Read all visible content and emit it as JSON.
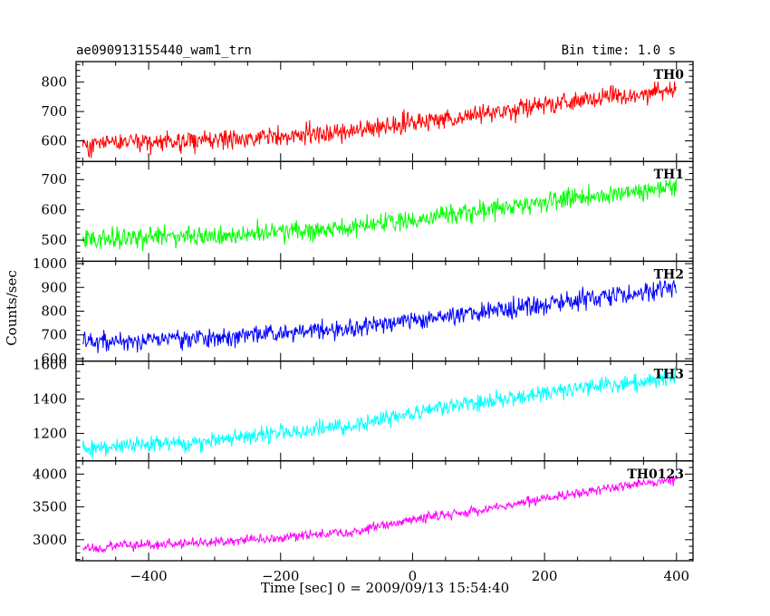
{
  "header": {
    "title": "ae090913155440_wam1_trn",
    "bin_time": "Bin time: 1.0 s"
  },
  "chart_data": {
    "type": "line",
    "title": "ae090913155440_wam1_trn",
    "xlabel": "Time [sec] 0 = 2009/09/13 15:54:40",
    "ylabel": "Counts/sec",
    "xlim": [
      -510,
      425
    ],
    "x_ticks": [
      -400,
      -200,
      0,
      200,
      400
    ],
    "x_tick_labels": [
      "−400",
      "−200",
      "0",
      "200",
      "400"
    ],
    "series_x_range": [
      -500,
      400
    ],
    "bin_time_s": 1.0,
    "grid": false,
    "panels": [
      {
        "name": "TH0",
        "color": "#ff0000",
        "ylim": [
          530,
          870
        ],
        "y_ticks": [
          600,
          700,
          800
        ],
        "trend": {
          "x": [
            -500,
            -300,
            -100,
            0,
            100,
            200,
            300,
            400
          ],
          "y": [
            590,
            605,
            630,
            660,
            690,
            720,
            750,
            775
          ]
        },
        "noise_amplitude": 32
      },
      {
        "name": "TH1",
        "color": "#00ff00",
        "ylim": [
          430,
          760
        ],
        "y_ticks": [
          500,
          600,
          700
        ],
        "trend": {
          "x": [
            -500,
            -300,
            -100,
            0,
            100,
            200,
            300,
            400
          ],
          "y": [
            505,
            515,
            540,
            570,
            595,
            625,
            650,
            675
          ]
        },
        "noise_amplitude": 30
      },
      {
        "name": "TH2",
        "color": "#0000ff",
        "ylim": [
          590,
          1010
        ],
        "y_ticks": [
          600,
          700,
          800,
          900,
          1000
        ],
        "trend": {
          "x": [
            -500,
            -300,
            -100,
            0,
            100,
            200,
            300,
            400
          ],
          "y": [
            670,
            690,
            725,
            760,
            795,
            830,
            865,
            895
          ]
        },
        "noise_amplitude": 38
      },
      {
        "name": "TH3",
        "color": "#00ffff",
        "ylim": [
          1040,
          1620
        ],
        "y_ticks": [
          1200,
          1400,
          1600
        ],
        "trend": {
          "x": [
            -500,
            -300,
            -100,
            0,
            100,
            200,
            300,
            400
          ],
          "y": [
            1110,
            1160,
            1240,
            1320,
            1380,
            1430,
            1480,
            1520
          ]
        },
        "noise_amplitude": 45
      },
      {
        "name": "TH0123",
        "color": "#ff00ff",
        "ylim": [
          2680,
          4200
        ],
        "y_ticks": [
          3000,
          3500,
          4000
        ],
        "trend": {
          "x": [
            -500,
            -300,
            -100,
            0,
            100,
            200,
            300,
            400
          ],
          "y": [
            2880,
            2960,
            3110,
            3300,
            3450,
            3620,
            3790,
            3920
          ]
        },
        "noise_amplitude": 70
      }
    ]
  }
}
